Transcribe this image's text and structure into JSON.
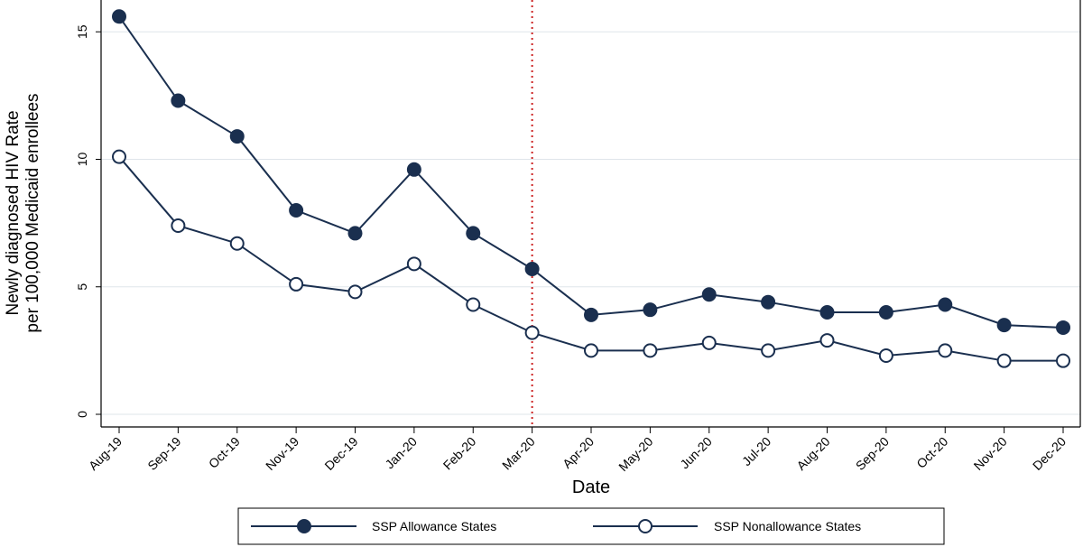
{
  "chart_data": {
    "type": "line",
    "title": "",
    "xlabel": "Date",
    "ylabel": [
      "Newly diagnosed HIV Rate",
      "per 100,000 Medicaid enrollees"
    ],
    "categories": [
      "Aug-19",
      "Sep-19",
      "Oct-19",
      "Nov-19",
      "Dec-19",
      "Jan-20",
      "Feb-20",
      "Mar-20",
      "Apr-20",
      "May-20",
      "Jun-20",
      "Jul-20",
      "Aug-20",
      "Sep-20",
      "Oct-20",
      "Nov-20",
      "Dec-20"
    ],
    "ylim": [
      0,
      16
    ],
    "yticks": [
      0,
      5,
      10,
      15
    ],
    "grid": true,
    "reference_line": {
      "category": "Mar-20",
      "color": "#cc2222",
      "style": "dotted"
    },
    "series": [
      {
        "name": "SSP Allowance States",
        "marker": "filled-circle",
        "color": "#1a2f4f",
        "values": [
          15.6,
          12.3,
          10.9,
          8.0,
          7.1,
          9.6,
          7.1,
          5.7,
          3.9,
          4.1,
          4.7,
          4.4,
          4.0,
          4.0,
          4.3,
          3.5,
          3.4
        ]
      },
      {
        "name": "SSP Nonallowance States",
        "marker": "hollow-circle",
        "color": "#1a2f4f",
        "values": [
          10.1,
          7.4,
          6.7,
          5.1,
          4.8,
          5.9,
          4.3,
          3.2,
          2.5,
          2.5,
          2.8,
          2.5,
          2.9,
          2.3,
          2.5,
          2.1,
          2.1
        ]
      }
    ],
    "legend_position": "bottom"
  }
}
